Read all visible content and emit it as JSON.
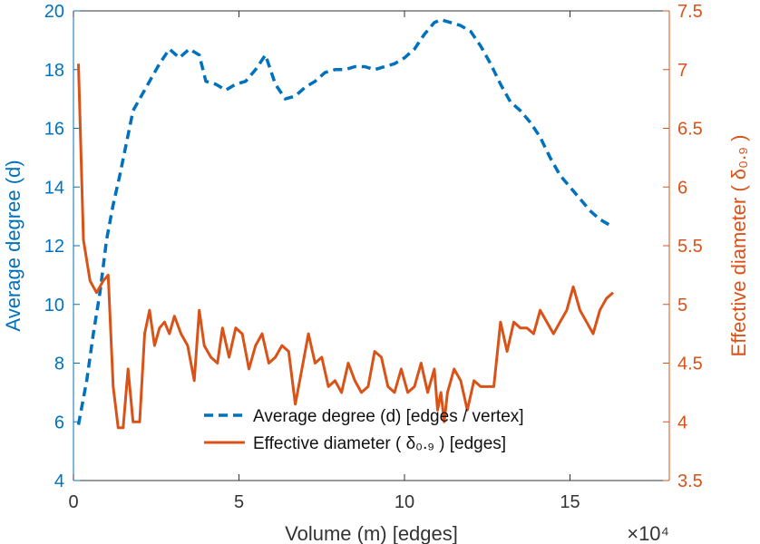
{
  "colors": {
    "left_axis": "#0072BD",
    "right_axis": "#D95319",
    "x_axis": "#333333"
  },
  "chart_data": {
    "type": "line",
    "title": "",
    "xlabel": "Volume (m) [edges]",
    "x_exponent_label": "×10⁴",
    "ylabel_left": "Average degree (d)",
    "ylabel_right": "Effective diameter ( δ₀.₉ )",
    "xlim": [
      0,
      18
    ],
    "ylim_left": [
      4,
      20
    ],
    "ylim_right": [
      3.5,
      7.5
    ],
    "x_ticks": [
      "0",
      "5",
      "10",
      "15"
    ],
    "y_left_ticks": [
      "4",
      "6",
      "8",
      "10",
      "12",
      "14",
      "16",
      "18",
      "20"
    ],
    "y_right_ticks": [
      "3.5",
      "4",
      "4.5",
      "5",
      "5.5",
      "6",
      "6.5",
      "7",
      "7.5"
    ],
    "grid": false,
    "legend_position": "bottom-center",
    "series": [
      {
        "name": "Average degree (d) [edges / vertex]",
        "axis": "left",
        "style": "dashed",
        "x": [
          0.15,
          0.4,
          0.6,
          0.8,
          1.0,
          1.2,
          1.4,
          1.6,
          1.8,
          2.0,
          2.3,
          2.6,
          2.9,
          3.2,
          3.5,
          3.8,
          4.0,
          4.3,
          4.6,
          4.9,
          5.2,
          5.5,
          5.8,
          6.1,
          6.4,
          6.7,
          7.0,
          7.3,
          7.6,
          7.9,
          8.2,
          8.5,
          8.8,
          9.1,
          9.4,
          9.7,
          10.0,
          10.3,
          10.6,
          10.9,
          11.1,
          11.4,
          11.7,
          12.0,
          12.3,
          12.6,
          12.9,
          13.2,
          13.5,
          13.8,
          14.1,
          14.4,
          14.7,
          15.0,
          15.3,
          15.6,
          15.9,
          16.2
        ],
        "values": [
          5.9,
          7.4,
          9.0,
          10.4,
          12.2,
          13.4,
          14.4,
          15.5,
          16.6,
          17.0,
          17.6,
          18.2,
          18.7,
          18.4,
          18.7,
          18.5,
          17.6,
          17.5,
          17.3,
          17.5,
          17.6,
          18.0,
          18.5,
          17.5,
          17.0,
          17.1,
          17.4,
          17.6,
          17.9,
          18.0,
          18.0,
          18.1,
          18.1,
          18.0,
          18.1,
          18.2,
          18.4,
          18.7,
          19.2,
          19.6,
          19.7,
          19.6,
          19.5,
          19.3,
          18.8,
          18.2,
          17.5,
          16.9,
          16.6,
          16.2,
          15.7,
          15.0,
          14.4,
          14.0,
          13.6,
          13.2,
          12.9,
          12.7
        ]
      },
      {
        "name": "Effective diameter ( δ₀.₉ ) [edges]",
        "axis": "right",
        "style": "solid",
        "x": [
          0.15,
          0.3,
          0.5,
          0.7,
          0.9,
          1.05,
          1.2,
          1.35,
          1.5,
          1.65,
          1.8,
          2.0,
          2.15,
          2.3,
          2.45,
          2.6,
          2.75,
          2.9,
          3.05,
          3.25,
          3.45,
          3.65,
          3.8,
          3.95,
          4.15,
          4.35,
          4.5,
          4.7,
          4.9,
          5.1,
          5.3,
          5.5,
          5.7,
          5.9,
          6.1,
          6.3,
          6.5,
          6.7,
          6.9,
          7.1,
          7.3,
          7.5,
          7.7,
          7.9,
          8.1,
          8.3,
          8.5,
          8.7,
          8.9,
          9.1,
          9.3,
          9.5,
          9.7,
          9.9,
          10.1,
          10.3,
          10.5,
          10.7,
          10.9,
          11.0,
          11.1,
          11.2,
          11.3,
          11.4,
          11.5,
          11.7,
          11.9,
          12.1,
          12.3,
          12.5,
          12.7,
          12.9,
          13.1,
          13.3,
          13.5,
          13.7,
          13.9,
          14.1,
          14.3,
          14.5,
          14.7,
          14.9,
          15.1,
          15.3,
          15.5,
          15.7,
          15.9,
          16.1,
          16.3
        ],
        "values": [
          7.05,
          5.55,
          5.2,
          5.1,
          5.2,
          5.25,
          4.3,
          3.95,
          3.95,
          4.45,
          4.0,
          4.0,
          4.75,
          4.95,
          4.65,
          4.8,
          4.85,
          4.75,
          4.9,
          4.75,
          4.65,
          4.35,
          4.95,
          4.65,
          4.55,
          4.5,
          4.8,
          4.55,
          4.8,
          4.75,
          4.45,
          4.65,
          4.75,
          4.5,
          4.55,
          4.65,
          4.6,
          4.15,
          4.45,
          4.75,
          4.5,
          4.55,
          4.3,
          4.35,
          4.25,
          4.5,
          4.35,
          4.25,
          4.3,
          4.6,
          4.55,
          4.3,
          4.25,
          4.45,
          4.25,
          4.3,
          4.5,
          4.25,
          4.45,
          4.1,
          4.25,
          4.0,
          4.25,
          4.35,
          4.45,
          4.35,
          4.1,
          4.35,
          4.3,
          4.3,
          4.3,
          4.85,
          4.6,
          4.85,
          4.8,
          4.8,
          4.75,
          4.95,
          4.85,
          4.75,
          4.85,
          4.95,
          5.15,
          4.95,
          4.85,
          4.75,
          4.95,
          5.05,
          5.1
        ]
      }
    ]
  }
}
